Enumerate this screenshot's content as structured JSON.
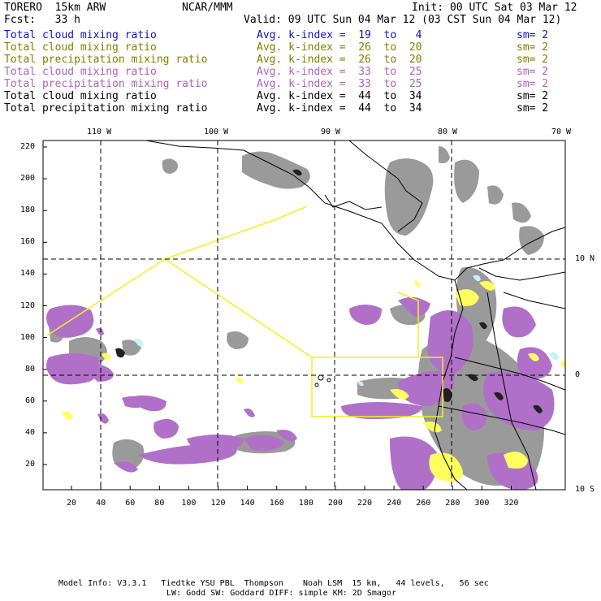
{
  "header": {
    "model": "TORERO  15km ARW",
    "center": "NCAR/MMM",
    "init": "Init: 00 UTC Sat 03 Mar 12",
    "fcst": "Fcst:   33 h",
    "valid": "Valid: 09 UTC Sun 04 Mar 12 (03 CST Sun 04 Mar 12)"
  },
  "legend": [
    {
      "field": "Total cloud mixing ratio",
      "kidx": "Avg. k-index =  19  to   4",
      "sm": "sm= 2",
      "color": "#1010c8"
    },
    {
      "field": "Total cloud mixing ratio",
      "kidx": "Avg. k-index =  26  to  20",
      "sm": "sm= 2",
      "color": "#808000"
    },
    {
      "field": "Total precipitation mixing ratio",
      "kidx": "Avg. k-index =  26  to  20",
      "sm": "sm= 2",
      "color": "#808000"
    },
    {
      "field": "Total cloud mixing ratio",
      "kidx": "Avg. k-index =  33  to  25",
      "sm": "sm= 2",
      "color": "#b060c0"
    },
    {
      "field": "Total precipitation mixing ratio",
      "kidx": "Avg. k-index =  33  to  25",
      "sm": "sm= 2",
      "color": "#b060c0"
    },
    {
      "field": "Total cloud mixing ratio",
      "kidx": "Avg. k-index =  44  to  34",
      "sm": "sm= 2",
      "color": "#000000"
    },
    {
      "field": "Total precipitation mixing ratio",
      "kidx": "Avg. k-index =  44  to  34",
      "sm": "sm= 2",
      "color": "#000000"
    }
  ],
  "axes": {
    "top_lon_labels": [
      "110 W",
      "100 W",
      "90 W",
      "80 W",
      "70 W"
    ],
    "right_lat_labels": [
      "10 N",
      "0",
      "10 S"
    ],
    "y_ticks": [
      "220",
      "200",
      "180",
      "160",
      "140",
      "120",
      "100",
      "80",
      "60",
      "40",
      "20"
    ],
    "x_ticks": [
      "20",
      "40",
      "60",
      "80",
      "100",
      "120",
      "140",
      "160",
      "180",
      "200",
      "220",
      "240",
      "260",
      "280",
      "300",
      "320"
    ]
  },
  "footer": {
    "line1": "Model Info: V3.3.1   Tiedtke YSU PBL  Thompson    Noah LSM  15 km,   44 levels,   56 sec",
    "line2": "LW: Godd SW: Goddard DIFF: simple KM: 2D Smagor"
  },
  "colors": {
    "grey_cloud": "#909090",
    "purple_cloud": "#b070c8",
    "yellow_precip": "#ffff60",
    "cyan_precip": "#c8f0ff",
    "flight_track": "#f0f020",
    "dark_core": "#202020"
  }
}
